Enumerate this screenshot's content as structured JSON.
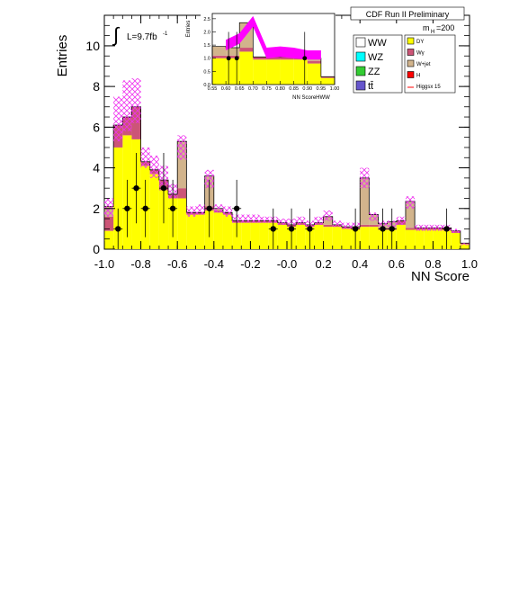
{
  "chart_data": {
    "type": "bar",
    "title": "CDF Run II Preliminary",
    "ylabel": "Entries",
    "xlabel": "NN Score",
    "lumi_label": "L=9.7fb",
    "lumi_exp": "-1",
    "mass_label": "m",
    "mass_sub": "H",
    "mass_value": "=200",
    "xlim": [
      -1.0,
      1.0
    ],
    "ylim": [
      0,
      11.5
    ],
    "xticks": [
      "-1.0",
      "-0.8",
      "-0.6",
      "-0.4",
      "-0.2",
      "-0.0",
      "0.2",
      "0.4",
      "0.6",
      "0.8",
      "1.0"
    ],
    "yticks": [
      "0",
      "2",
      "4",
      "6",
      "8",
      "10"
    ],
    "bin_edges": [
      -1.0,
      -0.95,
      -0.9,
      -0.85,
      -0.8,
      -0.75,
      -0.7,
      -0.65,
      -0.6,
      -0.55,
      -0.5,
      -0.45,
      -0.4,
      -0.35,
      -0.3,
      -0.25,
      -0.2,
      -0.15,
      -0.1,
      -0.05,
      0.0,
      0.05,
      0.1,
      0.15,
      0.2,
      0.25,
      0.3,
      0.35,
      0.4,
      0.45,
      0.5,
      0.55,
      0.6,
      0.65,
      0.7,
      0.75,
      0.8,
      0.85,
      0.9,
      0.95,
      1.0
    ],
    "series": [
      {
        "name": "DY",
        "color": "#ffff00",
        "values": [
          0.9,
          5.0,
          5.6,
          5.4,
          4.1,
          3.7,
          2.9,
          2.5,
          2.5,
          1.7,
          1.7,
          1.9,
          1.8,
          1.7,
          1.3,
          1.3,
          1.3,
          1.3,
          1.3,
          1.2,
          1.1,
          1.2,
          1.1,
          1.2,
          1.1,
          1.1,
          1.0,
          1.0,
          1.1,
          1.1,
          0.95,
          0.95,
          1.2,
          0.95,
          0.95,
          0.95,
          0.95,
          0.95,
          0.8,
          0.25
        ]
      },
      {
        "name": "Wγ",
        "color": "#cc5577",
        "values": [
          0.7,
          1.1,
          0.9,
          1.6,
          0.2,
          0.2,
          0.5,
          0.2,
          0.5,
          0.1,
          0.1,
          0.2,
          0.1,
          0.1,
          0.1,
          0.1,
          0.1,
          0.1,
          0.1,
          0.1,
          0.1,
          0.1,
          0.1,
          0.1,
          0.1,
          0.1,
          0.1,
          0.1,
          0.1,
          0.1,
          0.1,
          0.1,
          0.2,
          0.1,
          0.1,
          0.1,
          0.1,
          0.1,
          0.1,
          0.05
        ]
      },
      {
        "name": "W+jet",
        "color": "#d2b48c",
        "values": [
          0.5,
          0.0,
          0.0,
          0.0,
          0.0,
          0.0,
          0.0,
          0.0,
          2.3,
          0.0,
          0.0,
          1.5,
          0.1,
          0.0,
          0.0,
          0.0,
          0.0,
          0.0,
          0.0,
          0.0,
          0.0,
          0.0,
          0.0,
          0.0,
          0.4,
          0.0,
          0.0,
          0.0,
          2.3,
          0.5,
          0.2,
          0.3,
          0.0,
          1.3,
          0.0,
          0.0,
          0.0,
          0.0,
          0.0,
          0.0
        ]
      }
    ],
    "uncertainty_band": {
      "name": "Higgsx 15",
      "color": "#ff00ff",
      "lower": [
        1.6,
        5.3,
        5.8,
        6.2,
        4.0,
        3.5,
        3.1,
        2.5,
        4.4,
        1.6,
        1.7,
        3.0,
        1.8,
        1.6,
        1.3,
        1.3,
        1.3,
        1.3,
        1.3,
        1.2,
        1.2,
        1.2,
        1.1,
        1.2,
        1.4,
        1.1,
        1.0,
        1.0,
        3.0,
        1.4,
        1.1,
        1.1,
        1.2,
        2.0,
        0.9,
        0.9,
        0.9,
        0.9,
        0.8,
        0.2
      ],
      "upper": [
        2.5,
        7.5,
        8.3,
        8.4,
        5.0,
        4.6,
        4.1,
        3.2,
        5.6,
        2.1,
        2.2,
        3.9,
        2.2,
        2.1,
        1.7,
        1.7,
        1.7,
        1.6,
        1.6,
        1.5,
        1.5,
        1.6,
        1.4,
        1.6,
        1.9,
        1.4,
        1.3,
        1.3,
        4.0,
        1.8,
        1.4,
        1.4,
        1.6,
        2.6,
        1.2,
        1.2,
        1.2,
        1.2,
        1.0,
        0.3
      ]
    },
    "data_points": {
      "x": [
        -0.925,
        -0.875,
        -0.825,
        -0.775,
        -0.675,
        -0.625,
        -0.425,
        -0.275,
        -0.075,
        0.025,
        0.125,
        0.375,
        0.525,
        0.575,
        0.875
      ],
      "y": [
        1,
        2,
        3,
        2,
        3,
        2,
        2,
        2,
        1,
        1,
        1,
        1,
        1,
        1,
        1
      ],
      "err": [
        1,
        1.41,
        1.73,
        1.41,
        1.73,
        1.41,
        1.41,
        1.41,
        1,
        1,
        1,
        1,
        1,
        1,
        1
      ]
    },
    "legend": {
      "col1": [
        {
          "label": "WW",
          "color": "#ffffff"
        },
        {
          "label": "WZ",
          "color": "#00ffff"
        },
        {
          "label": "ZZ",
          "color": "#33cc33"
        },
        {
          "label": "tt̄",
          "color": "#6655cc"
        }
      ],
      "col2": [
        {
          "label": "DY",
          "color": "#ffff00"
        },
        {
          "label": "Wγ",
          "color": "#cc5577"
        },
        {
          "label": "W+jet",
          "color": "#d2b48c"
        },
        {
          "label": "H",
          "color": "#ff0000"
        },
        {
          "label": "Higgsx 15",
          "color": "#ff0000",
          "line": true
        }
      ]
    },
    "inset": {
      "xlabel": "NN ScoreHWW",
      "ylabel": "Entries",
      "xlim": [
        0.55,
        1.0
      ],
      "ylim": [
        0,
        2.7
      ],
      "xticks": [
        "0.55",
        "0.60",
        "0.65",
        "0.70",
        "0.75",
        "0.80",
        "0.85",
        "0.90",
        "0.95",
        "1.00"
      ],
      "yticks": [
        "0.0",
        "0.5",
        "1.0",
        "1.5",
        "2.0",
        "2.5"
      ],
      "bin_edges": [
        0.55,
        0.6,
        0.65,
        0.7,
        0.75,
        0.8,
        0.85,
        0.9,
        0.95,
        1.0
      ],
      "dy": [
        1.0,
        1.0,
        1.25,
        0.95,
        0.95,
        0.95,
        0.95,
        0.8,
        0.25
      ],
      "wg": [
        0.1,
        0.1,
        0.15,
        0.1,
        0.1,
        0.1,
        0.1,
        0.1,
        0.05
      ],
      "wjet": [
        0.35,
        0.3,
        0.95,
        0.0,
        0.0,
        0.0,
        0.0,
        0.1,
        0.0
      ],
      "band_x": [
        0.6,
        0.65,
        0.7,
        0.75,
        0.8,
        0.85,
        0.9,
        0.95
      ],
      "band_lower": [
        1.3,
        1.55,
        2.2,
        1.0,
        1.05,
        1.0,
        0.95,
        0.95
      ],
      "band_upper": [
        1.7,
        1.95,
        2.6,
        1.4,
        1.45,
        1.4,
        1.3,
        1.3
      ],
      "data_x": [
        0.61,
        0.64,
        0.89
      ],
      "data_y": [
        1,
        1,
        1
      ],
      "data_err": [
        1,
        1,
        1
      ]
    }
  }
}
